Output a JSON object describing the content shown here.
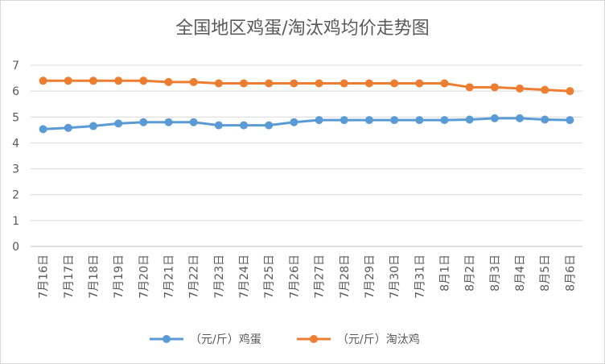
{
  "chart_data": {
    "type": "line",
    "title": "全国地区鸡蛋/淘汰鸡均价走势图",
    "categories": [
      "7月16日",
      "7月17日",
      "7月18日",
      "7月19日",
      "7月20日",
      "7月21日",
      "7月22日",
      "7月23日",
      "7月24日",
      "7月25日",
      "7月26日",
      "7月27日",
      "7月28日",
      "7月29日",
      "7月30日",
      "7月31日",
      "8月1日",
      "8月2日",
      "8月3日",
      "8月4日",
      "8月5日",
      "8月6日"
    ],
    "series": [
      {
        "name": "（元/斤）鸡蛋",
        "color": "#5b9bd5",
        "values": [
          4.53,
          4.58,
          4.65,
          4.75,
          4.8,
          4.8,
          4.8,
          4.68,
          4.68,
          4.68,
          4.8,
          4.88,
          4.88,
          4.88,
          4.88,
          4.88,
          4.88,
          4.9,
          4.95,
          4.95,
          4.9,
          4.88
        ]
      },
      {
        "name": "（元/斤）淘汰鸡",
        "color": "#ed7d31",
        "values": [
          6.4,
          6.4,
          6.4,
          6.4,
          6.4,
          6.35,
          6.35,
          6.3,
          6.3,
          6.3,
          6.3,
          6.3,
          6.3,
          6.3,
          6.3,
          6.3,
          6.3,
          6.15,
          6.15,
          6.1,
          6.05,
          6.0
        ]
      }
    ],
    "ylim": [
      0,
      7
    ],
    "yticks": [
      0,
      1,
      2,
      3,
      4,
      5,
      6,
      7
    ],
    "grid": true,
    "legend_position": "bottom"
  }
}
